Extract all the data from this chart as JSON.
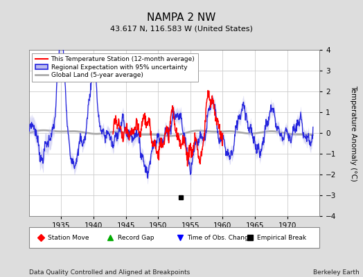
{
  "title": "NAMPA 2 NW",
  "subtitle": "43.617 N, 116.583 W (United States)",
  "ylabel": "Temperature Anomaly (°C)",
  "xlabel_note": "Data Quality Controlled and Aligned at Breakpoints",
  "credit": "Berkeley Earth",
  "xlim": [
    1930,
    1975
  ],
  "ylim": [
    -4,
    4
  ],
  "yticks": [
    -4,
    -3,
    -2,
    -1,
    0,
    1,
    2,
    3,
    4
  ],
  "xticks": [
    1935,
    1940,
    1945,
    1950,
    1955,
    1960,
    1965,
    1970
  ],
  "station_color": "#FF0000",
  "regional_color": "#2222DD",
  "regional_fill_color": "#BBBBEE",
  "global_color": "#AAAAAA",
  "plot_bg": "#FFFFFF",
  "fig_bg": "#DDDDDD",
  "legend_items": [
    {
      "label": "This Temperature Station (12-month average)",
      "color": "#FF0000"
    },
    {
      "label": "Regional Expectation with 95% uncertainty",
      "color": "#2222DD"
    },
    {
      "label": "Global Land (5-year average)",
      "color": "#AAAAAA"
    }
  ],
  "marker_legend": [
    {
      "label": "Station Move",
      "marker": "D",
      "color": "#FF0000"
    },
    {
      "label": "Record Gap",
      "marker": "^",
      "color": "#00AA00"
    },
    {
      "label": "Time of Obs. Change",
      "marker": "v",
      "color": "#0000FF"
    },
    {
      "label": "Empirical Break",
      "marker": "s",
      "color": "#000000"
    }
  ],
  "empirical_break_x": 1953.5,
  "empirical_break_y": -3.1
}
